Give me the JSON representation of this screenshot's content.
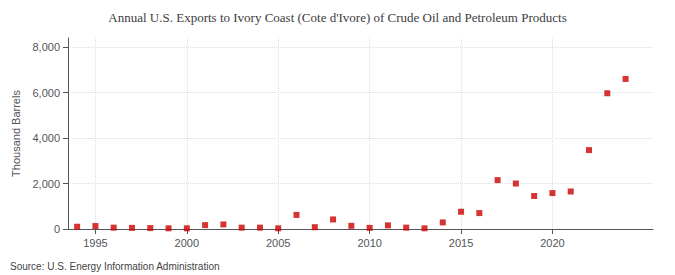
{
  "chart_data": {
    "type": "scatter",
    "title": "Annual U.S. Exports to Ivory Coast (Cote d'Ivore) of Crude Oil and Petroleum Products",
    "ylabel": "Thousand Barrels",
    "annotation": "Source: U.S. Energy Information Administration",
    "x": [
      1994,
      1995,
      1996,
      1997,
      1998,
      1999,
      2000,
      2001,
      2002,
      2003,
      2004,
      2005,
      2006,
      2007,
      2008,
      2009,
      2010,
      2011,
      2012,
      2013,
      2014,
      2015,
      2016,
      2017,
      2018,
      2019,
      2020,
      2021,
      2022,
      2023,
      2024
    ],
    "values": [
      100,
      130,
      60,
      50,
      40,
      30,
      30,
      170,
      200,
      60,
      60,
      30,
      620,
      80,
      420,
      140,
      50,
      160,
      60,
      30,
      290,
      760,
      700,
      2150,
      2000,
      1450,
      1580,
      1650,
      3470,
      5970,
      6600
    ],
    "color": "#cc0000",
    "marker": "square",
    "xlim": [
      1993.5,
      2025.5
    ],
    "xticks": [
      1995,
      2000,
      2005,
      2010,
      2015,
      2020
    ],
    "ylim": [
      0,
      8400
    ],
    "yticks": [
      0,
      {
        "value": 2000,
        "label": "2,000"
      },
      {
        "value": 4000,
        "label": "4,000"
      },
      {
        "value": 6000,
        "label": "6,000"
      },
      {
        "value": 8000,
        "label": "8,000"
      }
    ],
    "grid": true
  }
}
